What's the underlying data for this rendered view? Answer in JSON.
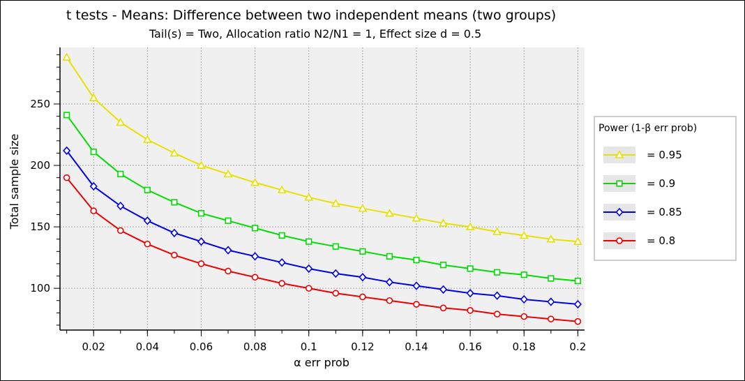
{
  "chart_data": {
    "type": "line",
    "title": "t tests - Means: Difference between two independent means (two groups)",
    "subtitle": "Tail(s) = Two, Allocation ratio N2/N1 = 1, Effect size d = 0.5",
    "xlabel": "α err prob",
    "ylabel": "Total sample size",
    "xlim": [
      0.0075,
      0.2025
    ],
    "ylim": [
      66,
      296
    ],
    "x_ticks": [
      0.02,
      0.04,
      0.06,
      0.08,
      0.1,
      0.12,
      0.14,
      0.16,
      0.18,
      0.2
    ],
    "x_tick_labels": [
      "0.02",
      "0.04",
      "0.06",
      "0.08",
      "0.1",
      "0.12",
      "0.14",
      "0.16",
      "0.18",
      "0.2"
    ],
    "y_ticks": [
      100,
      150,
      200,
      250
    ],
    "y_tick_labels": [
      "100",
      "150",
      "200",
      "250"
    ],
    "grid": true,
    "legend": {
      "title": "Power (1-β err prob)",
      "placement": "right"
    },
    "x": [
      0.01,
      0.02,
      0.03,
      0.04,
      0.05,
      0.06,
      0.07,
      0.08,
      0.09,
      0.1,
      0.11,
      0.12,
      0.13,
      0.14,
      0.15,
      0.16,
      0.17,
      0.18,
      0.19,
      0.2
    ],
    "series": [
      {
        "name": "= 0.95",
        "marker": "triangle",
        "color": "#e8e000",
        "values": [
          288,
          255,
          235,
          221,
          210,
          200,
          193,
          186,
          180,
          174,
          169,
          165,
          161,
          157,
          153,
          150,
          146,
          143,
          140,
          138
        ]
      },
      {
        "name": "= 0.9",
        "marker": "square",
        "color": "#00dd00",
        "values": [
          241,
          211,
          193,
          180,
          170,
          161,
          155,
          149,
          143,
          138,
          134,
          130,
          126,
          123,
          119,
          116,
          113,
          111,
          108,
          106
        ]
      },
      {
        "name": "= 0.85",
        "marker": "diamond",
        "color": "#0000ee",
        "values": [
          212,
          183,
          167,
          155,
          145,
          138,
          131,
          126,
          121,
          116,
          112,
          109,
          105,
          102,
          99,
          96,
          94,
          91,
          89,
          87
        ]
      },
      {
        "name": "= 0.8",
        "marker": "circle",
        "color": "#ee0000",
        "values": [
          190,
          163,
          147,
          136,
          127,
          120,
          114,
          109,
          104,
          100,
          96,
          93,
          90,
          87,
          84,
          82,
          79,
          77,
          75,
          73
        ]
      }
    ]
  }
}
